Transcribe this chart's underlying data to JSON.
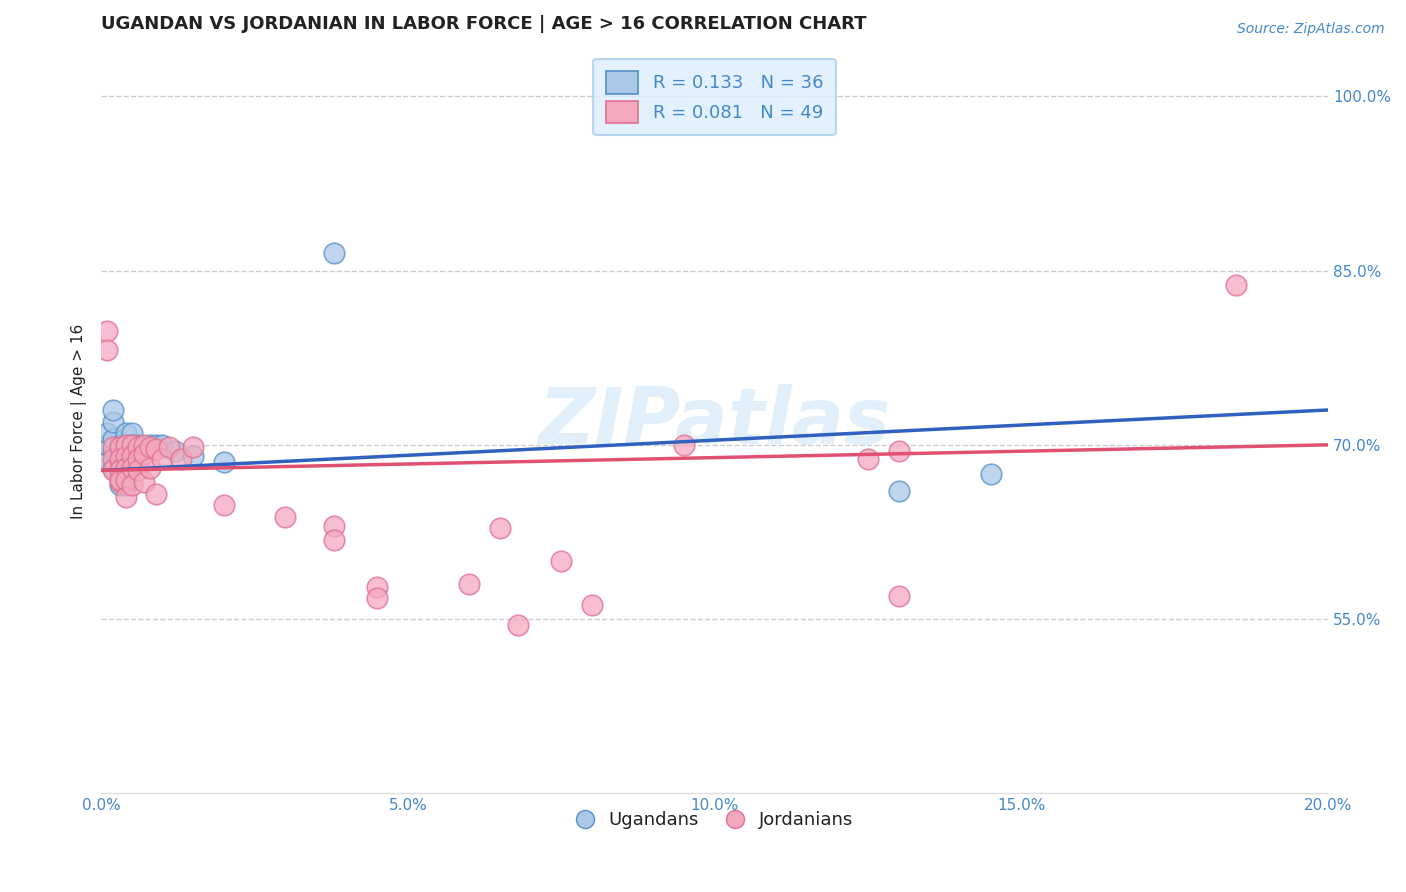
{
  "title": "UGANDAN VS JORDANIAN IN LABOR FORCE | AGE > 16 CORRELATION CHART",
  "source_text": "Source: ZipAtlas.com",
  "ylabel": "In Labor Force | Age > 16",
  "watermark": "ZIPatlas",
  "xlim": [
    0.0,
    0.2
  ],
  "ylim": [
    0.4,
    1.04
  ],
  "xticks": [
    0.0,
    0.05,
    0.1,
    0.15,
    0.2
  ],
  "xticklabels": [
    "0.0%",
    "5.0%",
    "10.0%",
    "15.0%",
    "20.0%"
  ],
  "yticks": [
    0.55,
    0.7,
    0.85,
    1.0
  ],
  "yticklabels": [
    "55.0%",
    "70.0%",
    "85.0%",
    "100.0%"
  ],
  "ugandan_color": "#aac8e8",
  "jordanian_color": "#f4a8be",
  "ugandan_edge": "#5590c8",
  "jordanian_edge": "#e07090",
  "blue_line_color": "#3060c0",
  "pink_line_color": "#e05070",
  "legend_box_facecolor": "#ddeeff",
  "legend_border_color": "#aaccee",
  "r_ugandan": 0.133,
  "n_ugandan": 36,
  "r_jordanian": 0.081,
  "n_jordanian": 49,
  "ugandan_x": [
    0.001,
    0.001,
    0.001,
    0.002,
    0.002,
    0.002,
    0.002,
    0.002,
    0.003,
    0.003,
    0.003,
    0.003,
    0.003,
    0.003,
    0.003,
    0.004,
    0.004,
    0.004,
    0.004,
    0.004,
    0.005,
    0.005,
    0.005,
    0.005,
    0.006,
    0.006,
    0.007,
    0.008,
    0.009,
    0.01,
    0.012,
    0.015,
    0.02,
    0.038,
    0.13,
    0.145
  ],
  "ugandan_y": [
    0.685,
    0.7,
    0.71,
    0.695,
    0.705,
    0.68,
    0.72,
    0.73,
    0.695,
    0.685,
    0.675,
    0.665,
    0.7,
    0.69,
    0.68,
    0.71,
    0.7,
    0.695,
    0.685,
    0.665,
    0.71,
    0.7,
    0.695,
    0.68,
    0.7,
    0.69,
    0.695,
    0.7,
    0.7,
    0.7,
    0.695,
    0.69,
    0.685,
    0.865,
    0.66,
    0.675
  ],
  "jordanian_x": [
    0.001,
    0.001,
    0.002,
    0.002,
    0.002,
    0.003,
    0.003,
    0.003,
    0.003,
    0.003,
    0.004,
    0.004,
    0.004,
    0.004,
    0.004,
    0.005,
    0.005,
    0.005,
    0.005,
    0.006,
    0.006,
    0.006,
    0.007,
    0.007,
    0.007,
    0.008,
    0.008,
    0.009,
    0.009,
    0.01,
    0.011,
    0.013,
    0.015,
    0.02,
    0.03,
    0.038,
    0.038,
    0.045,
    0.045,
    0.06,
    0.065,
    0.068,
    0.075,
    0.08,
    0.095,
    0.125,
    0.13,
    0.13,
    0.185
  ],
  "jordanian_y": [
    0.798,
    0.782,
    0.698,
    0.688,
    0.678,
    0.698,
    0.688,
    0.678,
    0.668,
    0.67,
    0.7,
    0.69,
    0.68,
    0.67,
    0.655,
    0.7,
    0.69,
    0.68,
    0.665,
    0.698,
    0.688,
    0.678,
    0.7,
    0.692,
    0.668,
    0.698,
    0.68,
    0.696,
    0.658,
    0.688,
    0.698,
    0.688,
    0.698,
    0.648,
    0.638,
    0.63,
    0.618,
    0.578,
    0.568,
    0.58,
    0.628,
    0.545,
    0.6,
    0.562,
    0.7,
    0.688,
    0.695,
    0.57,
    0.838
  ],
  "title_color": "#222222",
  "axis_color": "#4488cc",
  "grid_color": "#cccccc",
  "background_color": "#ffffff",
  "title_fontsize": 13,
  "axis_label_fontsize": 11,
  "tick_fontsize": 11,
  "legend_fontsize": 13
}
